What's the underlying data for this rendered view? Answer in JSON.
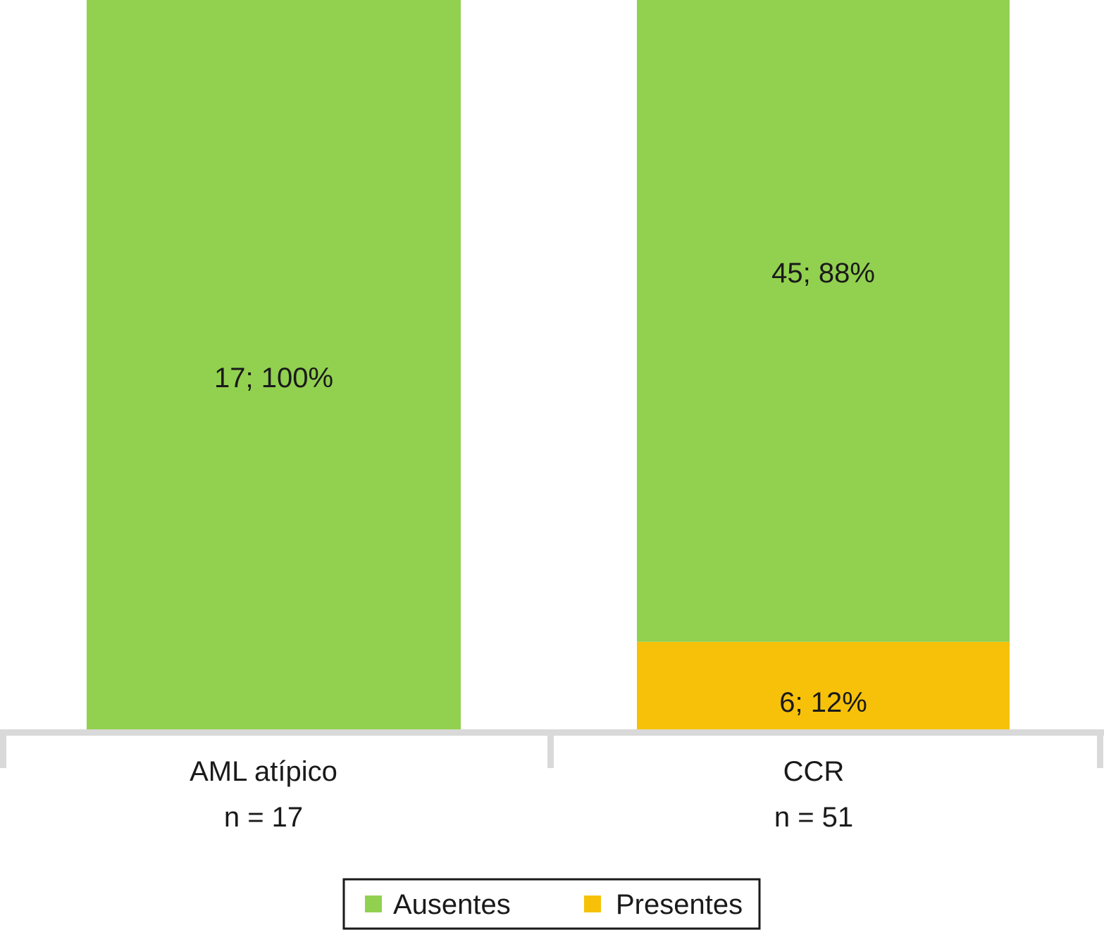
{
  "chart_data": {
    "type": "bar",
    "stacked": true,
    "percent_stacked": true,
    "categories": [
      "AML atípico",
      "CCR"
    ],
    "category_sublabels": [
      "n = 17",
      "n = 51"
    ],
    "series": [
      {
        "name": "Presentes",
        "color": "#F7C10A",
        "values": [
          0,
          6
        ],
        "percents": [
          0,
          12
        ],
        "data_labels": [
          "",
          "6; 12%"
        ]
      },
      {
        "name": "Ausentes",
        "color": "#92D050",
        "values": [
          17,
          45
        ],
        "percents": [
          100,
          88
        ],
        "data_labels": [
          "17; 100%",
          "45; 88%"
        ]
      }
    ],
    "ylim": [
      0,
      100
    ],
    "grid": false,
    "legend": {
      "position": "bottom",
      "items": [
        "Ausentes",
        "Presentes"
      ]
    },
    "axis_color": "#D9D9D9"
  }
}
